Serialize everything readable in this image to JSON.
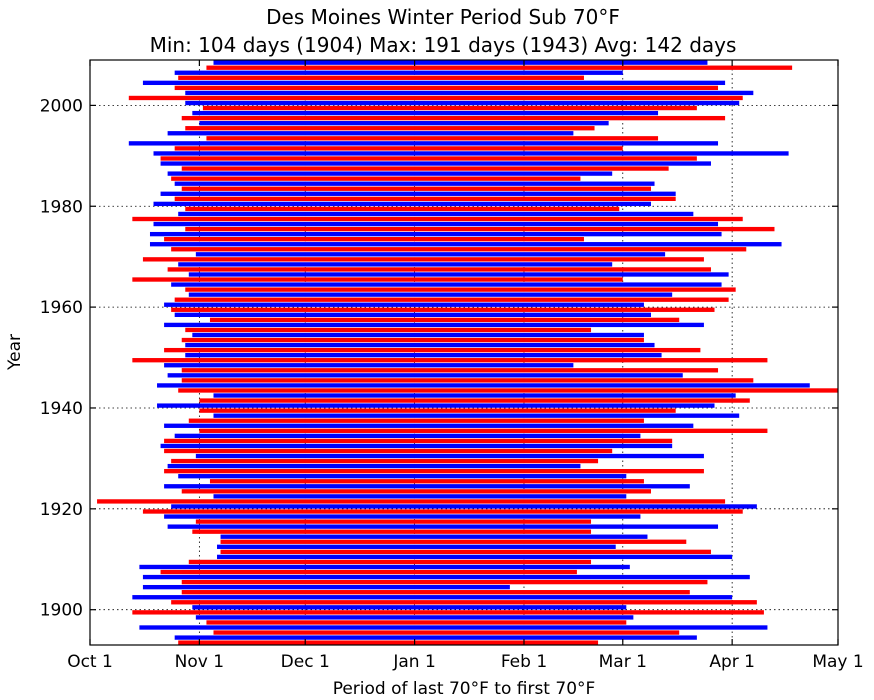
{
  "chart_data": {
    "type": "bar",
    "orientation": "horizontal-floating",
    "title": "Des Moines Winter Period Sub 70°F",
    "subtitle": "Min: 104 days (1904) Max: 191 days (1943) Avg: 142 days",
    "xlabel": "Period of last 70°F to first 70°F",
    "ylabel": "Year",
    "x_ticks": [
      "Oct 1",
      "Nov 1",
      "Dec 1",
      "Jan 1",
      "Feb 1",
      "Mar 1",
      "Apr 1",
      "May 1"
    ],
    "x_tick_days": [
      0,
      31,
      61,
      92,
      123,
      151,
      182,
      212
    ],
    "y_ticks": [
      "1900",
      "1920",
      "1940",
      "1960",
      "1980",
      "2000"
    ],
    "y_tick_values": [
      1900,
      1920,
      1940,
      1960,
      1980,
      2000
    ],
    "xlim_days": [
      0,
      212
    ],
    "ylim": [
      1893,
      2009
    ],
    "grid": true,
    "colors": {
      "alternate_a": "#ff0000",
      "alternate_b": "#0000ff"
    },
    "first_year": 1893,
    "start_days": [
      25,
      24,
      35,
      14,
      33,
      30,
      12,
      29,
      23,
      12,
      26,
      15,
      26,
      15,
      20,
      14,
      28,
      36,
      37,
      36,
      37,
      37,
      29,
      22,
      30,
      21,
      15,
      23,
      2,
      35,
      26,
      21,
      34,
      25,
      21,
      22,
      23,
      30,
      21,
      20,
      21,
      24,
      31,
      21,
      28,
      35,
      31,
      19,
      31,
      35,
      25,
      19,
      26,
      22,
      26,
      21,
      12,
      27,
      21,
      27,
      26,
      29,
      27,
      21,
      34,
      24,
      23,
      21,
      24,
      28,
      27,
      23,
      12,
      28,
      22,
      25,
      15,
      30,
      23,
      17,
      21,
      17,
      27,
      18,
      12,
      25,
      27,
      18,
      24,
      20,
      26,
      24,
      23,
      22,
      26,
      20,
      20,
      18,
      24,
      11,
      33,
      22,
      27,
      31,
      26,
      29,
      32,
      27,
      11,
      27,
      24,
      15,
      25,
      24,
      33,
      35
    ]
  }
}
